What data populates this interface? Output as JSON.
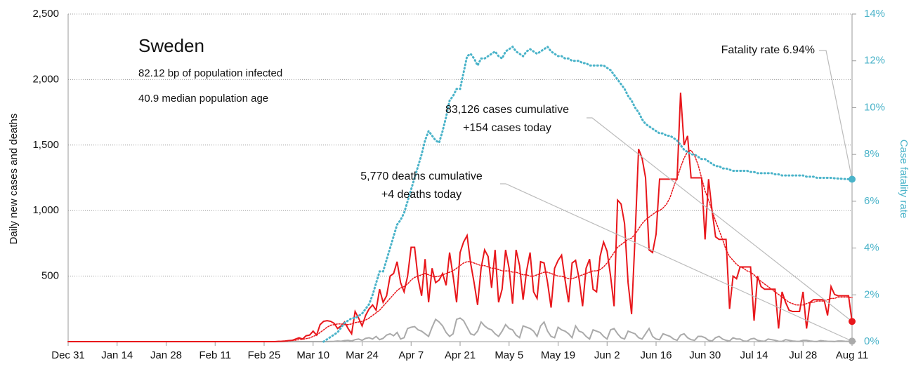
{
  "chart_data": {
    "type": "line",
    "title": "Sweden",
    "subtitle": [
      "82.12 bp of population infected",
      "40.9 median population age"
    ],
    "y_label": "Daily new cases and deaths",
    "y2_label": "Case fatality rate",
    "annotations": [
      [
        "Fatality rate 6.94%"
      ],
      [
        "83,126 cases cumulative",
        "+154 cases today"
      ],
      [
        "5,770 deaths cumulative",
        "+4 deaths today"
      ]
    ],
    "ylim": [
      0,
      2500
    ],
    "yticks": [
      500,
      {
        "value": 1000,
        "label": "1,000"
      },
      {
        "value": 1500,
        "label": "1,500"
      },
      {
        "value": 2000,
        "label": "2,000"
      },
      {
        "value": 2500,
        "label": "2,500"
      }
    ],
    "y2lim": [
      0,
      14
    ],
    "y2ticks": [
      {
        "value": 0,
        "label": "0%"
      },
      {
        "value": 2,
        "label": "2%"
      },
      {
        "value": 4,
        "label": "4%"
      },
      {
        "value": 6,
        "label": "6%"
      },
      {
        "value": 8,
        "label": "8%"
      },
      {
        "value": 10,
        "label": "10%"
      },
      {
        "value": 12,
        "label": "12%"
      },
      {
        "value": 14,
        "label": "14%"
      }
    ],
    "grid": true,
    "categories": [
      "Dec 31",
      null,
      null,
      null,
      null,
      null,
      null,
      null,
      null,
      null,
      null,
      null,
      null,
      null,
      "Jan 14",
      null,
      null,
      null,
      null,
      null,
      null,
      null,
      null,
      null,
      null,
      null,
      null,
      null,
      "Jan 28",
      null,
      null,
      null,
      null,
      null,
      null,
      null,
      null,
      null,
      null,
      null,
      null,
      null,
      "Feb 11",
      null,
      null,
      null,
      null,
      null,
      null,
      null,
      null,
      null,
      null,
      null,
      null,
      null,
      "Feb 25",
      null,
      null,
      null,
      null,
      null,
      null,
      null,
      null,
      null,
      null,
      null,
      null,
      null,
      "Mar 10",
      null,
      null,
      null,
      null,
      null,
      null,
      null,
      null,
      null,
      null,
      null,
      null,
      null,
      "Mar 24",
      null,
      null,
      null,
      null,
      null,
      null,
      null,
      null,
      null,
      null,
      null,
      null,
      null,
      "Apr 7",
      null,
      null,
      null,
      null,
      null,
      null,
      null,
      null,
      null,
      null,
      null,
      null,
      null,
      "Apr 21",
      null,
      null,
      null,
      null,
      null,
      null,
      null,
      null,
      null,
      null,
      null,
      null,
      null,
      "May 5",
      null,
      null,
      null,
      null,
      null,
      null,
      null,
      null,
      null,
      null,
      null,
      null,
      null,
      "May 19",
      null,
      null,
      null,
      null,
      null,
      null,
      null,
      null,
      null,
      null,
      null,
      null,
      null,
      "Jun 2",
      null,
      null,
      null,
      null,
      null,
      null,
      null,
      null,
      null,
      null,
      null,
      null,
      null,
      "Jun 16",
      null,
      null,
      null,
      null,
      null,
      null,
      null,
      null,
      null,
      null,
      null,
      null,
      null,
      "Jun 30",
      null,
      null,
      null,
      null,
      null,
      null,
      null,
      null,
      null,
      null,
      null,
      null,
      null,
      "Jul 14",
      null,
      null,
      null,
      null,
      null,
      null,
      null,
      null,
      null,
      null,
      null,
      null,
      null,
      "Jul 28",
      null,
      null,
      null,
      null,
      null,
      null,
      null,
      null,
      null,
      null,
      null,
      null,
      null,
      "Aug 11"
    ],
    "series": [
      {
        "color": "#aaaaaa",
        "style": "solid",
        "values": [
          0,
          0,
          0,
          0,
          0,
          0,
          0,
          0,
          0,
          0,
          0,
          0,
          0,
          0,
          0,
          0,
          0,
          0,
          0,
          0,
          0,
          0,
          0,
          0,
          0,
          0,
          0,
          0,
          0,
          0,
          0,
          0,
          0,
          0,
          0,
          0,
          0,
          0,
          0,
          0,
          0,
          0,
          0,
          0,
          0,
          0,
          0,
          0,
          0,
          0,
          0,
          0,
          0,
          0,
          0,
          0,
          0,
          0,
          0,
          0,
          0,
          0,
          0,
          0,
          0,
          0,
          0,
          0,
          0,
          0,
          0,
          0,
          0,
          0,
          0,
          1,
          2,
          5,
          3,
          8,
          10,
          5,
          15,
          20,
          10,
          25,
          30,
          20,
          40,
          15,
          25,
          50,
          60,
          45,
          70,
          20,
          30,
          100,
          110,
          115,
          90,
          80,
          60,
          40,
          110,
          170,
          150,
          120,
          70,
          40,
          60,
          170,
          180,
          160,
          110,
          60,
          50,
          80,
          150,
          120,
          100,
          90,
          60,
          40,
          80,
          130,
          100,
          90,
          50,
          30,
          120,
          110,
          100,
          80,
          40,
          120,
          150,
          80,
          40,
          30,
          110,
          90,
          80,
          60,
          30,
          120,
          80,
          70,
          40,
          20,
          90,
          80,
          70,
          40,
          20,
          90,
          100,
          60,
          30,
          20,
          80,
          70,
          60,
          30,
          20,
          60,
          100,
          40,
          20,
          15,
          60,
          50,
          40,
          20,
          10,
          50,
          60,
          30,
          15,
          10,
          40,
          40,
          30,
          10,
          5,
          30,
          40,
          20,
          10,
          5,
          30,
          20,
          20,
          5,
          3,
          20,
          25,
          10,
          5,
          3,
          20,
          15,
          10,
          3,
          2,
          15,
          10,
          5,
          3,
          2,
          10,
          10,
          5,
          2,
          1,
          8,
          5,
          3,
          2,
          1,
          5,
          5,
          3,
          2,
          4
        ]
      },
      {
        "color": "#e8161b",
        "style": "dotted",
        "values": [
          null,
          null,
          null,
          null,
          null,
          null,
          null,
          null,
          null,
          null,
          null,
          null,
          null,
          null,
          null,
          null,
          null,
          null,
          null,
          null,
          null,
          null,
          null,
          null,
          null,
          null,
          null,
          null,
          null,
          null,
          null,
          null,
          null,
          null,
          null,
          null,
          null,
          null,
          null,
          null,
          null,
          null,
          null,
          null,
          null,
          null,
          null,
          null,
          null,
          null,
          null,
          null,
          null,
          null,
          null,
          null,
          null,
          null,
          null,
          null,
          2,
          3,
          4,
          6,
          8,
          11,
          15,
          18,
          23,
          28,
          40,
          50,
          70,
          90,
          110,
          125,
          130,
          135,
          135,
          130,
          130,
          135,
          145,
          150,
          155,
          165,
          180,
          200,
          220,
          240,
          270,
          300,
          330,
          360,
          390,
          410,
          420,
          440,
          470,
          490,
          500,
          510,
          520,
          510,
          500,
          495,
          500,
          510,
          520,
          530,
          540,
          560,
          580,
          600,
          610,
          610,
          600,
          590,
          580,
          580,
          570,
          560,
          560,
          550,
          540,
          540,
          540,
          530,
          530,
          520,
          510,
          510,
          500,
          500,
          510,
          520,
          530,
          530,
          520,
          510,
          500,
          500,
          490,
          480,
          480,
          490,
          500,
          510,
          520,
          530,
          540,
          540,
          550,
          570,
          600,
          640,
          680,
          720,
          740,
          760,
          780,
          790,
          820,
          860,
          900,
          930,
          950,
          970,
          990,
          1000,
          1020,
          1050,
          1100,
          1180,
          1250,
          1330,
          1400,
          1450,
          1460,
          1420,
          1350,
          1250,
          1150,
          1080,
          1000,
          920,
          850,
          780,
          700,
          650,
          620,
          590,
          570,
          560,
          540,
          530,
          510,
          480,
          460,
          440,
          420,
          400,
          380,
          360,
          340,
          320,
          300,
          290,
          280,
          280,
          280,
          290,
          300,
          300,
          310,
          310,
          310,
          320,
          330,
          330,
          340,
          340,
          340,
          340,
          335
        ]
      },
      {
        "color": "#e8161b",
        "style": "solid",
        "values": [
          0,
          0,
          0,
          0,
          0,
          0,
          0,
          0,
          0,
          0,
          0,
          0,
          0,
          0,
          0,
          0,
          0,
          0,
          0,
          0,
          0,
          0,
          0,
          0,
          0,
          0,
          0,
          0,
          0,
          0,
          0,
          0,
          0,
          0,
          0,
          0,
          0,
          0,
          0,
          0,
          0,
          0,
          0,
          0,
          0,
          0,
          0,
          0,
          0,
          0,
          0,
          0,
          0,
          0,
          0,
          0,
          0,
          0,
          0,
          0,
          2,
          3,
          5,
          8,
          10,
          20,
          30,
          20,
          45,
          50,
          80,
          50,
          130,
          155,
          160,
          155,
          140,
          100,
          120,
          150,
          100,
          60,
          230,
          180,
          120,
          200,
          250,
          280,
          240,
          400,
          300,
          350,
          500,
          520,
          610,
          450,
          380,
          500,
          720,
          720,
          480,
          350,
          630,
          300,
          560,
          450,
          470,
          520,
          430,
          680,
          500,
          300,
          680,
          760,
          810,
          600,
          450,
          280,
          560,
          700,
          650,
          410,
          700,
          300,
          400,
          700,
          560,
          290,
          700,
          580,
          320,
          540,
          680,
          380,
          330,
          610,
          600,
          450,
          260,
          560,
          620,
          660,
          470,
          300,
          600,
          620,
          480,
          270,
          560,
          630,
          400,
          380,
          650,
          760,
          690,
          500,
          270,
          1080,
          1050,
          900,
          450,
          210,
          800,
          1470,
          1400,
          1250,
          700,
          680,
          820,
          1240,
          1240,
          1240,
          1240,
          1240,
          1240,
          1900,
          1500,
          1570,
          1250,
          1250,
          1250,
          1250,
          780,
          1240,
          1000,
          800,
          780,
          780,
          780,
          250,
          500,
          480,
          570,
          570,
          570,
          570,
          160,
          500,
          420,
          400,
          400,
          400,
          400,
          100,
          380,
          300,
          240,
          230,
          230,
          230,
          380,
          100,
          300,
          320,
          320,
          320,
          320,
          200,
          420,
          360,
          350,
          350,
          350,
          350,
          154
        ]
      },
      {
        "color": "#4ab3c9",
        "style": "dotted",
        "axis": "y2",
        "values": [
          null,
          null,
          null,
          null,
          null,
          null,
          null,
          null,
          null,
          null,
          null,
          null,
          null,
          null,
          null,
          null,
          null,
          null,
          null,
          null,
          null,
          null,
          null,
          null,
          null,
          null,
          null,
          null,
          null,
          null,
          null,
          null,
          null,
          null,
          null,
          null,
          null,
          null,
          null,
          null,
          null,
          null,
          null,
          null,
          null,
          null,
          null,
          null,
          null,
          null,
          null,
          null,
          null,
          null,
          null,
          null,
          null,
          null,
          null,
          null,
          null,
          null,
          null,
          null,
          null,
          null,
          null,
          null,
          null,
          null,
          null,
          null,
          null,
          0,
          0.1,
          0.2,
          0.3,
          0.4,
          0.6,
          0.8,
          0.9,
          1.0,
          1.0,
          1.1,
          1.2,
          1.4,
          1.6,
          2.0,
          2.5,
          3.0,
          3.0,
          3.5,
          4.0,
          4.5,
          5.0,
          5.2,
          5.5,
          6.0,
          6.5,
          7.0,
          7.5,
          8.0,
          8.6,
          9.0,
          8.8,
          8.6,
          8.5,
          9.0,
          9.6,
          10.3,
          10.5,
          10.8,
          10.8,
          11.5,
          12.2,
          12.3,
          12.1,
          11.8,
          12.1,
          12.1,
          12.2,
          12.3,
          12.4,
          12.2,
          12.1,
          12.4,
          12.5,
          12.6,
          12.4,
          12.3,
          12.2,
          12.4,
          12.5,
          12.4,
          12.3,
          12.4,
          12.5,
          12.6,
          12.4,
          12.3,
          12.2,
          12.2,
          12.1,
          12.1,
          12.0,
          12.0,
          12.0,
          11.9,
          11.9,
          11.8,
          11.8,
          11.8,
          11.8,
          11.8,
          11.7,
          11.6,
          11.4,
          11.2,
          11.0,
          10.8,
          10.5,
          10.3,
          10.0,
          9.8,
          9.5,
          9.3,
          9.2,
          9.1,
          9.0,
          8.9,
          8.9,
          8.8,
          8.8,
          8.7,
          8.6,
          8.4,
          8.2,
          8.1,
          8.0,
          8.0,
          7.9,
          7.8,
          7.8,
          7.7,
          7.6,
          7.5,
          7.5,
          7.4,
          7.4,
          7.35,
          7.3,
          7.3,
          7.3,
          7.3,
          7.3,
          7.25,
          7.25,
          7.2,
          7.2,
          7.2,
          7.2,
          7.2,
          7.15,
          7.15,
          7.1,
          7.1,
          7.1,
          7.1,
          7.1,
          7.1,
          7.1,
          7.05,
          7.05,
          7.05,
          7.0,
          7.0,
          7.0,
          7.0,
          7.0,
          6.98,
          6.97,
          6.96,
          6.95,
          6.94,
          6.94
        ]
      }
    ]
  }
}
